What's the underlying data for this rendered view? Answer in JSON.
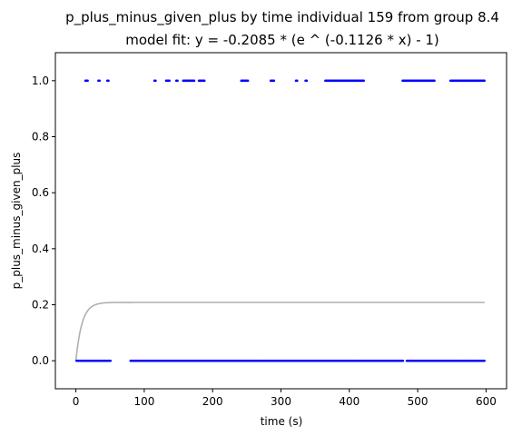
{
  "chart_data": {
    "type": "scatter",
    "title": "p_plus_minus_given_plus by time individual 159 from group 8.4",
    "subtitle": "model fit: y = -0.2085 * (e ^ (-0.1126 * x) - 1)",
    "xlabel": "time (s)",
    "ylabel": "p_plus_minus_given_plus",
    "xlim": [
      -30,
      630
    ],
    "ylim": [
      -0.1,
      1.1
    ],
    "x_ticks": [
      0,
      100,
      200,
      300,
      400,
      500,
      600
    ],
    "x_tick_labels": [
      "0",
      "100",
      "200",
      "300",
      "400",
      "500",
      "600"
    ],
    "y_ticks": [
      0.0,
      0.2,
      0.4,
      0.6,
      0.8,
      1.0
    ],
    "y_tick_labels": [
      "0.0",
      "0.2",
      "0.4",
      "0.6",
      "0.8",
      "1.0"
    ],
    "grid": false,
    "point_color": "#0000ff",
    "fit_color": "#b0b0b0",
    "fit": {
      "a": 0.2085,
      "b": 0.1126,
      "x_range": [
        0,
        598
      ]
    },
    "series": [
      {
        "y": 1,
        "x_ranges": [
          [
            14,
            18
          ],
          [
            33,
            36
          ],
          [
            46,
            48
          ],
          [
            115,
            117
          ],
          [
            132,
            138
          ],
          [
            147,
            150
          ],
          [
            157,
            174
          ],
          [
            180,
            188
          ],
          [
            242,
            253
          ],
          [
            285,
            290
          ],
          [
            322,
            325
          ],
          [
            336,
            338
          ],
          [
            365,
            422
          ],
          [
            478,
            526
          ],
          [
            548,
            598
          ]
        ]
      },
      {
        "y": 0,
        "x_ranges": [
          [
            1,
            52
          ],
          [
            80,
            480
          ],
          [
            484,
            598
          ]
        ]
      }
    ]
  }
}
